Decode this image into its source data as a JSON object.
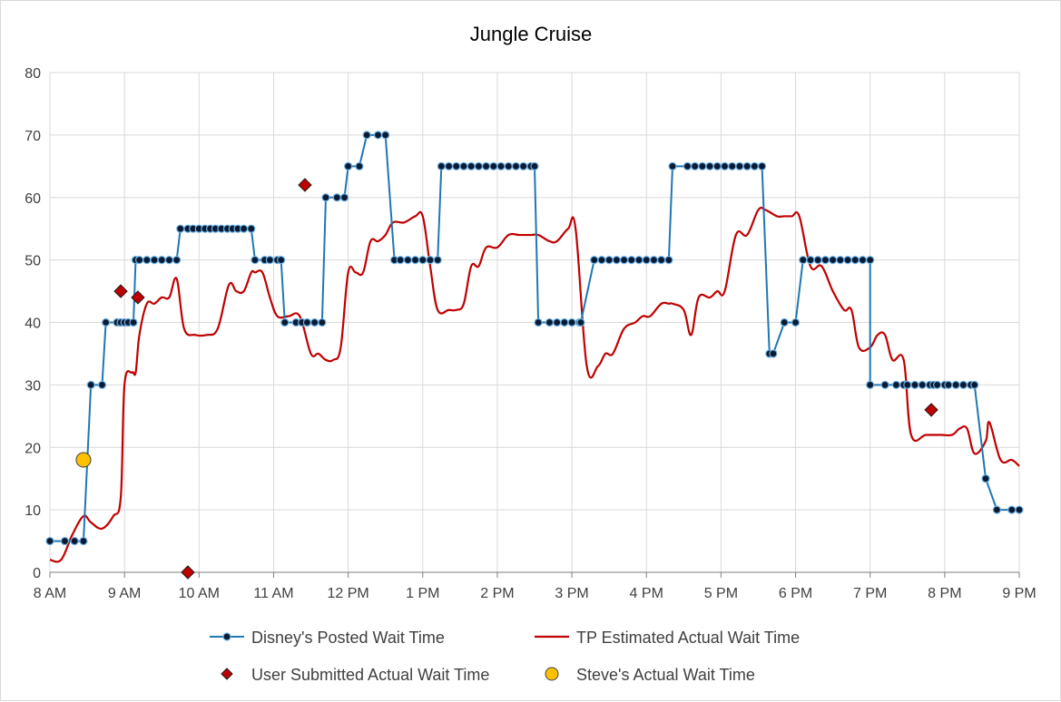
{
  "chart_data": {
    "type": "line",
    "title": "Jungle Cruise",
    "xlabel": "",
    "ylabel": "",
    "x_ticks": [
      "8 AM",
      "9 AM",
      "10 AM",
      "11 AM",
      "12 PM",
      "1 PM",
      "2 PM",
      "3 PM",
      "4 PM",
      "5 PM",
      "6 PM",
      "7 PM",
      "8 PM",
      "9 PM"
    ],
    "x_range_hours": [
      8,
      21
    ],
    "ylim": [
      0,
      80
    ],
    "y_ticks": [
      0,
      10,
      20,
      30,
      40,
      50,
      60,
      70,
      80
    ],
    "grid": true,
    "legend_position": "bottom",
    "colors": {
      "posted": "#1f77b4",
      "posted_marker": "#0b1a33",
      "estimated": "#c00000",
      "user": "#c00000",
      "steve": "#ffc000",
      "grid": "#d9d9d9",
      "axis": "#7f7f7f"
    },
    "series": [
      {
        "name": "Disney's Posted Wait Time",
        "kind": "posted",
        "x": [
          8.0,
          8.2,
          8.33,
          8.45,
          8.55,
          8.7,
          8.75,
          8.9,
          8.95,
          9.0,
          9.05,
          9.12,
          9.15,
          9.2,
          9.3,
          9.4,
          9.5,
          9.6,
          9.7,
          9.75,
          9.85,
          9.92,
          10.0,
          10.08,
          10.15,
          10.22,
          10.3,
          10.38,
          10.45,
          10.52,
          10.6,
          10.7,
          10.75,
          10.88,
          10.95,
          11.05,
          11.1,
          11.15,
          11.3,
          11.38,
          11.45,
          11.55,
          11.65,
          11.7,
          11.85,
          11.95,
          12.0,
          12.15,
          12.25,
          12.4,
          12.5,
          12.62,
          12.7,
          12.8,
          12.9,
          13.0,
          13.1,
          13.2,
          13.25,
          13.35,
          13.45,
          13.55,
          13.65,
          13.75,
          13.85,
          13.95,
          14.05,
          14.15,
          14.25,
          14.35,
          14.45,
          14.5,
          14.55,
          14.7,
          14.8,
          14.9,
          15.0,
          15.1,
          15.12,
          15.3,
          15.4,
          15.5,
          15.6,
          15.7,
          15.8,
          15.9,
          16.0,
          16.1,
          16.2,
          16.3,
          16.35,
          16.55,
          16.65,
          16.75,
          16.85,
          16.95,
          17.05,
          17.15,
          17.25,
          17.35,
          17.45,
          17.55,
          17.65,
          17.7,
          17.85,
          18.0,
          18.1,
          18.2,
          18.3,
          18.4,
          18.5,
          18.6,
          18.7,
          18.8,
          18.9,
          19.0,
          19.0,
          19.2,
          19.35,
          19.45,
          19.5,
          19.6,
          19.7,
          19.8,
          19.85,
          19.9,
          20.0,
          20.05,
          20.15,
          20.25,
          20.35,
          20.4,
          20.55,
          20.55,
          20.7,
          20.9,
          21.0
        ],
        "values": [
          5,
          5,
          5,
          5,
          30,
          30,
          40,
          40,
          40,
          40,
          40,
          40,
          50,
          50,
          50,
          50,
          50,
          50,
          50,
          55,
          55,
          55,
          55,
          55,
          55,
          55,
          55,
          55,
          55,
          55,
          55,
          55,
          50,
          50,
          50,
          50,
          50,
          40,
          40,
          40,
          40,
          40,
          40,
          60,
          60,
          60,
          65,
          65,
          70,
          70,
          70,
          50,
          50,
          50,
          50,
          50,
          50,
          50,
          65,
          65,
          65,
          65,
          65,
          65,
          65,
          65,
          65,
          65,
          65,
          65,
          65,
          65,
          40,
          40,
          40,
          40,
          40,
          40,
          40,
          50,
          50,
          50,
          50,
          50,
          50,
          50,
          50,
          50,
          50,
          50,
          65,
          65,
          65,
          65,
          65,
          65,
          65,
          65,
          65,
          65,
          65,
          65,
          35,
          35,
          40,
          40,
          50,
          50,
          50,
          50,
          50,
          50,
          50,
          50,
          50,
          50,
          30,
          30,
          30,
          30,
          30,
          30,
          30,
          30,
          30,
          30,
          30,
          30,
          30,
          30,
          30,
          30,
          15,
          15,
          10,
          10,
          10
        ]
      },
      {
        "name": "TP Estimated Actual Wait Time",
        "kind": "estimated",
        "x": [
          8.0,
          8.15,
          8.3,
          8.45,
          8.55,
          8.7,
          8.85,
          8.95,
          9.0,
          9.1,
          9.15,
          9.2,
          9.3,
          9.4,
          9.5,
          9.6,
          9.7,
          9.8,
          9.95,
          10.1,
          10.25,
          10.4,
          10.5,
          10.6,
          10.7,
          10.75,
          10.85,
          10.95,
          11.05,
          11.2,
          11.35,
          11.5,
          11.6,
          11.7,
          11.8,
          11.9,
          12.0,
          12.1,
          12.2,
          12.3,
          12.4,
          12.5,
          12.6,
          12.75,
          12.9,
          13.0,
          13.1,
          13.2,
          13.35,
          13.45,
          13.55,
          13.65,
          13.75,
          13.85,
          14.0,
          14.15,
          14.3,
          14.45,
          14.55,
          14.7,
          14.8,
          14.95,
          15.05,
          15.2,
          15.35,
          15.45,
          15.55,
          15.7,
          15.85,
          15.95,
          16.05,
          16.2,
          16.3,
          16.35,
          16.5,
          16.6,
          16.7,
          16.85,
          16.95,
          17.05,
          17.2,
          17.35,
          17.5,
          17.6,
          17.75,
          17.85,
          17.95,
          18.05,
          18.2,
          18.35,
          18.5,
          18.65,
          18.75,
          18.85,
          19.0,
          19.1,
          19.2,
          19.3,
          19.45,
          19.55,
          19.75,
          19.95,
          20.1,
          20.2,
          20.3,
          20.4,
          20.55,
          20.6,
          20.75,
          20.9,
          21.0
        ],
        "values": [
          2,
          2,
          6,
          9,
          8,
          7,
          9,
          12,
          30,
          32,
          32,
          38,
          43,
          43,
          44,
          44,
          47,
          39,
          38,
          38,
          39,
          46,
          45,
          45,
          48,
          48,
          48,
          44,
          41,
          41,
          41,
          35,
          35,
          34,
          34,
          36,
          48,
          48,
          48,
          53,
          53,
          54,
          56,
          56,
          57,
          57,
          49,
          42,
          42,
          42,
          43,
          49,
          49,
          52,
          52,
          54,
          54,
          54,
          54,
          53,
          53,
          55,
          55,
          33,
          33,
          35,
          35,
          39,
          40,
          41,
          41,
          43,
          43,
          43,
          42,
          38,
          44,
          44,
          45,
          45,
          54,
          54,
          58,
          58,
          57,
          57,
          57,
          57,
          49,
          49,
          45,
          42,
          42,
          36,
          36,
          38,
          38,
          34,
          34,
          22,
          22,
          22,
          22,
          23,
          23,
          19,
          21,
          24,
          18,
          18,
          17
        ]
      },
      {
        "name": "User Submitted Actual Wait Time",
        "kind": "user",
        "x": [
          8.95,
          9.18,
          9.85,
          11.42,
          19.82
        ],
        "values": [
          45,
          44,
          0,
          62,
          26
        ]
      },
      {
        "name": "Steve's Actual Wait Time",
        "kind": "steve",
        "x": [
          8.45
        ],
        "values": [
          18
        ]
      }
    ]
  }
}
